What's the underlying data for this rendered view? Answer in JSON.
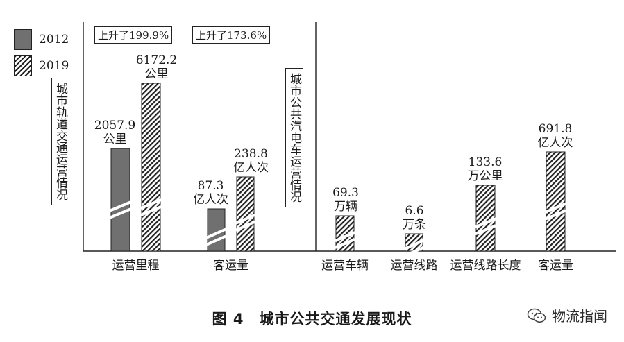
{
  "chart_data": {
    "type": "bar",
    "legend": [
      {
        "label": "2012",
        "style": "solid",
        "color": "#707070"
      },
      {
        "label": "2019",
        "style": "hatch",
        "color": "#222222"
      }
    ],
    "groups": [
      {
        "section_label": "城市轨道交通运营情况",
        "annotations": [
          "上升了199.9%",
          "上升了173.6%"
        ],
        "categories": [
          {
            "label": "运营里程",
            "bars": [
              {
                "year": "2012",
                "value": 2057.9,
                "label_value": "2057.9",
                "unit": "公里"
              },
              {
                "year": "2019",
                "value": 6172.2,
                "label_value": "6172.2",
                "unit": "公里"
              }
            ]
          },
          {
            "label": "客运量",
            "bars": [
              {
                "year": "2012",
                "value": 87.3,
                "label_value": "87.3",
                "unit": "亿人次"
              },
              {
                "year": "2019",
                "value": 238.8,
                "label_value": "238.8",
                "unit": "亿人次"
              }
            ]
          }
        ]
      },
      {
        "section_label": "城市公共汽电车运营情况",
        "categories": [
          {
            "label": "运营车辆",
            "bars": [
              {
                "year": "2019",
                "value": 69.3,
                "label_value": "69.3",
                "unit": "万辆"
              }
            ]
          },
          {
            "label": "运营线路",
            "bars": [
              {
                "year": "2019",
                "value": 6.6,
                "label_value": "6.6",
                "unit": "万条"
              }
            ]
          },
          {
            "label": "运营线路长度",
            "bars": [
              {
                "year": "2019",
                "value": 133.6,
                "label_value": "133.6",
                "unit": "万公里"
              }
            ]
          },
          {
            "label": "客运量",
            "bars": [
              {
                "year": "2019",
                "value": 691.8,
                "label_value": "691.8",
                "unit": "亿人次"
              }
            ]
          }
        ]
      }
    ],
    "title": "图 4　城市公共交通发展现状"
  },
  "watermark": {
    "text": "物流指闻",
    "icon": "wechat-icon"
  }
}
